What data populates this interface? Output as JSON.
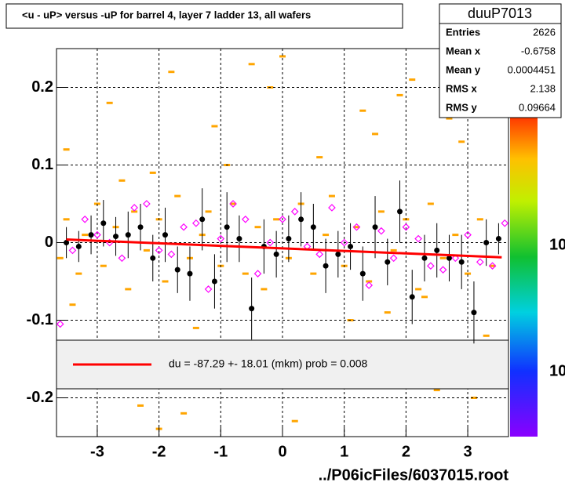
{
  "chart_data": {
    "type": "profile",
    "title": "<u - uP>       versus  -uP for barrel 4, layer 7 ladder 13, all wafers",
    "footer": "../P06icFiles/6037015.root",
    "xlim": [
      -3.66,
      3.66
    ],
    "ylim": [
      -0.25,
      0.25
    ],
    "xticks": [
      -3,
      -2,
      -1,
      0,
      1,
      2,
      3
    ],
    "yticks": [
      -0.2,
      -0.1,
      0,
      0.1,
      0.2
    ],
    "grid": true,
    "stats": {
      "name": "duuP7013",
      "labels": [
        "Entries",
        "Mean x",
        "Mean y",
        "RMS x",
        "RMS y"
      ],
      "values": [
        2626,
        -0.6758,
        0.0004451,
        2.138,
        0.09664
      ]
    },
    "fit_label": "du =  -87.29 +- 18.01 (mkm) prob = 0.008",
    "colorbar_labels": [
      "10",
      "10"
    ],
    "cells": {
      "color": "#ffa500",
      "x": [
        -3.6,
        -3.5,
        -3.3,
        -3.2,
        -3.0,
        -2.9,
        -2.7,
        -2.5,
        -2.4,
        -2.2,
        -2.0,
        -1.9,
        -1.7,
        -1.5,
        -1.3,
        -1.2,
        -1.0,
        -0.8,
        -0.6,
        -0.4,
        -0.3,
        -0.1,
        0.1,
        0.3,
        0.5,
        0.7,
        0.8,
        1.0,
        1.2,
        1.4,
        1.6,
        1.8,
        2.0,
        2.2,
        2.4,
        2.6,
        2.8,
        3.0,
        3.2,
        3.4,
        -3.5,
        -3.1,
        -2.8,
        -2.3,
        -2.1,
        -1.8,
        -1.4,
        -1.1,
        -0.7,
        -0.2,
        0.2,
        0.6,
        0.9,
        1.3,
        1.7,
        2.1,
        2.5,
        2.9,
        3.3,
        -3.4,
        -2.6,
        -1.6,
        -0.9,
        0.0,
        0.4,
        1.1,
        1.9,
        2.7,
        3.1,
        -2.0,
        -0.5,
        1.5,
        2.3
      ],
      "y": [
        -0.02,
        0.03,
        -0.04,
        0.01,
        0.05,
        -0.03,
        0.02,
        -0.06,
        0.04,
        -0.01,
        0.03,
        -0.05,
        0.06,
        -0.02,
        0.01,
        0.04,
        -0.03,
        0.05,
        -0.04,
        0.02,
        -0.06,
        0.03,
        -0.02,
        0.05,
        -0.04,
        0.01,
        0.06,
        -0.03,
        0.02,
        -0.05,
        0.04,
        -0.01,
        0.03,
        -0.06,
        0.05,
        -0.02,
        0.01,
        -0.04,
        0.03,
        -0.03,
        0.12,
        -0.13,
        0.18,
        -0.21,
        0.09,
        0.22,
        -0.11,
        0.15,
        -0.17,
        0.2,
        -0.23,
        0.11,
        -0.14,
        0.17,
        -0.09,
        0.21,
        -0.19,
        0.13,
        -0.12,
        -0.08,
        0.08,
        -0.22,
        0.1,
        0.24,
        -0.16,
        -0.1,
        0.19,
        0.16,
        -0.2,
        -0.24,
        0.23,
        0.14,
        -0.07
      ]
    },
    "profile": {
      "color": "#000000",
      "x": [
        -3.5,
        -3.3,
        -3.1,
        -2.9,
        -2.7,
        -2.5,
        -2.3,
        -2.1,
        -1.9,
        -1.7,
        -1.5,
        -1.3,
        -1.1,
        -0.9,
        -0.7,
        -0.5,
        -0.3,
        -0.1,
        0.1,
        0.3,
        0.5,
        0.7,
        0.9,
        1.1,
        1.3,
        1.5,
        1.7,
        1.9,
        2.1,
        2.3,
        2.5,
        2.7,
        2.9,
        3.1,
        3.3,
        3.5
      ],
      "y": [
        0.0,
        -0.005,
        0.01,
        0.025,
        0.008,
        0.01,
        0.02,
        -0.02,
        0.01,
        -0.035,
        -0.04,
        0.03,
        -0.05,
        0.02,
        0.005,
        -0.085,
        -0.005,
        -0.015,
        0.005,
        0.03,
        0.02,
        -0.03,
        -0.015,
        -0.005,
        -0.04,
        0.02,
        -0.025,
        0.04,
        -0.07,
        -0.02,
        -0.01,
        -0.02,
        -0.025,
        -0.09,
        0.0,
        0.005
      ],
      "err": [
        0.02,
        0.02,
        0.025,
        0.03,
        0.025,
        0.03,
        0.03,
        0.03,
        0.035,
        0.03,
        0.035,
        0.04,
        0.035,
        0.045,
        0.03,
        0.04,
        0.035,
        0.03,
        0.03,
        0.035,
        0.03,
        0.035,
        0.03,
        0.03,
        0.035,
        0.04,
        0.03,
        0.04,
        0.035,
        0.03,
        0.035,
        0.03,
        0.035,
        0.04,
        0.03,
        0.02
      ]
    },
    "means": {
      "color": "#ff00ff",
      "x": [
        -3.6,
        -3.4,
        -3.2,
        -3.0,
        -2.8,
        -2.6,
        -2.4,
        -2.2,
        -2.0,
        -1.8,
        -1.6,
        -1.4,
        -1.2,
        -1.0,
        -0.8,
        -0.6,
        -0.4,
        -0.2,
        0.0,
        0.2,
        0.4,
        0.6,
        0.8,
        1.0,
        1.2,
        1.4,
        1.6,
        1.8,
        2.0,
        2.2,
        2.4,
        2.6,
        2.8,
        3.0,
        3.2,
        3.4,
        3.6
      ],
      "y": [
        -0.105,
        -0.01,
        0.03,
        0.01,
        0.0,
        -0.02,
        0.045,
        0.05,
        -0.01,
        -0.015,
        0.02,
        0.025,
        -0.06,
        0.005,
        0.05,
        0.03,
        -0.04,
        0.0,
        0.03,
        0.04,
        -0.005,
        -0.015,
        0.045,
        0.0,
        0.02,
        -0.055,
        0.015,
        -0.02,
        0.02,
        0.005,
        -0.03,
        -0.035,
        -0.02,
        0.01,
        -0.025,
        -0.03,
        0.025
      ]
    },
    "fit": {
      "color": "#ff0000",
      "x": [
        -3.5,
        3.55
      ],
      "y": [
        0.004,
        -0.019
      ]
    }
  }
}
